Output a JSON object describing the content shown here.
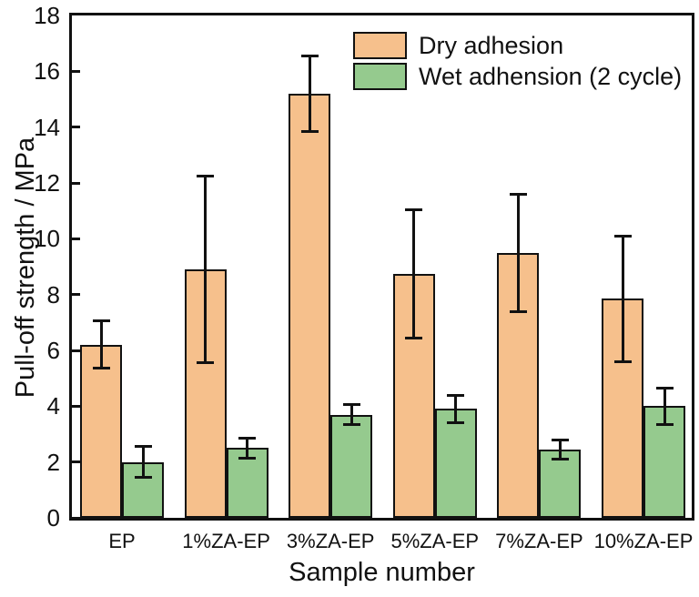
{
  "figure": {
    "background": "#ffffff",
    "text_color": "#111111"
  },
  "chart_data": {
    "type": "bar",
    "title": "",
    "xlabel": "Sample number",
    "ylabel": "Pull-off strength / MPa",
    "categories": [
      "EP",
      "1%ZA-EP",
      "3%ZA-EP",
      "5%ZA-EP",
      "7%ZA-EP",
      "10%ZA-EP"
    ],
    "series": [
      {
        "name": "Dry adhesion",
        "color": "#F6C08C",
        "values": [
          6.2,
          8.9,
          15.2,
          8.75,
          9.5,
          7.85
        ],
        "errors": [
          0.9,
          3.4,
          1.4,
          2.35,
          2.15,
          2.3
        ]
      },
      {
        "name": "Wet adhension (2 cycle)",
        "color": "#95CA8E",
        "values": [
          2.0,
          2.5,
          3.7,
          3.9,
          2.45,
          4.0
        ],
        "errors": [
          0.6,
          0.4,
          0.4,
          0.55,
          0.4,
          0.7
        ]
      }
    ],
    "ylim": [
      0,
      18
    ],
    "ytick_step": 2,
    "grid": false,
    "legend_position": "top-inside",
    "bar_border_color": "#111111",
    "error_bar_color": "#111111",
    "axis_color": "#111111"
  }
}
